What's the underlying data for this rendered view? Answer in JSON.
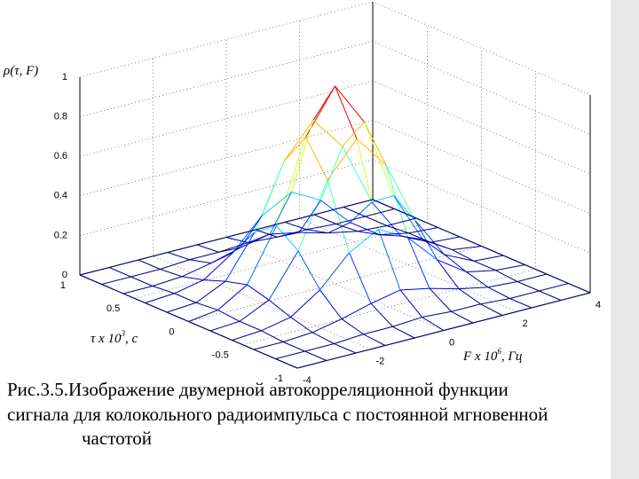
{
  "chart_data": {
    "type": "surface",
    "z_label": "ρ(τ, F)",
    "x_label": {
      "text": "τ x 10",
      "exponent": "3",
      "unit": ", с"
    },
    "y_label": {
      "text": "F x 10",
      "exponent": "6",
      "unit": ", Гц"
    },
    "x": [
      -1,
      -0.8,
      -0.6,
      -0.4,
      -0.2,
      0,
      0.2,
      0.4,
      0.6,
      0.8,
      1
    ],
    "y": [
      -4,
      -3.2,
      -2.4,
      -1.6,
      -0.8,
      0,
      0.8,
      1.6,
      2.4,
      3.2,
      4
    ],
    "z": [
      [
        0,
        0,
        0,
        0,
        0,
        0,
        0,
        0,
        0,
        0,
        0
      ],
      [
        0,
        0,
        0,
        0.01,
        0.01,
        0.02,
        0.01,
        0.01,
        0,
        0,
        0
      ],
      [
        0,
        0,
        0.01,
        0.04,
        0.08,
        0.11,
        0.08,
        0.04,
        0.01,
        0,
        0
      ],
      [
        0,
        0.01,
        0.04,
        0.14,
        0.29,
        0.37,
        0.29,
        0.14,
        0.04,
        0.01,
        0
      ],
      [
        0,
        0.01,
        0.08,
        0.29,
        0.61,
        0.78,
        0.61,
        0.29,
        0.08,
        0.01,
        0
      ],
      [
        0,
        0.02,
        0.11,
        0.37,
        0.78,
        1,
        0.78,
        0.37,
        0.11,
        0.02,
        0
      ],
      [
        0,
        0.01,
        0.08,
        0.29,
        0.61,
        0.78,
        0.61,
        0.29,
        0.08,
        0.01,
        0
      ],
      [
        0,
        0.01,
        0.04,
        0.14,
        0.29,
        0.37,
        0.29,
        0.14,
        0.04,
        0.01,
        0
      ],
      [
        0,
        0,
        0.01,
        0.04,
        0.08,
        0.11,
        0.08,
        0.04,
        0.01,
        0,
        0
      ],
      [
        0,
        0,
        0,
        0.01,
        0.01,
        0.02,
        0.01,
        0.01,
        0,
        0,
        0
      ],
      [
        0,
        0,
        0,
        0,
        0,
        0,
        0,
        0,
        0,
        0,
        0
      ]
    ],
    "xlim": [
      -1,
      1
    ],
    "xticks": [
      1,
      0.5,
      0,
      -0.5,
      -1
    ],
    "ylim": [
      -4,
      4
    ],
    "yticks": [
      -4,
      -2,
      0,
      2,
      4
    ],
    "zlim": [
      0,
      1
    ],
    "zticks": [
      0,
      0.2,
      0.4,
      0.6,
      0.8,
      1
    ],
    "grid": true,
    "colormap": "jet"
  },
  "caption": [
    "Рис.3.5.Изображение двумерной автокорреляционной функции",
    "сигнала для колокольного радиоимпульса с постоянной мгновенной",
    "частотой"
  ]
}
